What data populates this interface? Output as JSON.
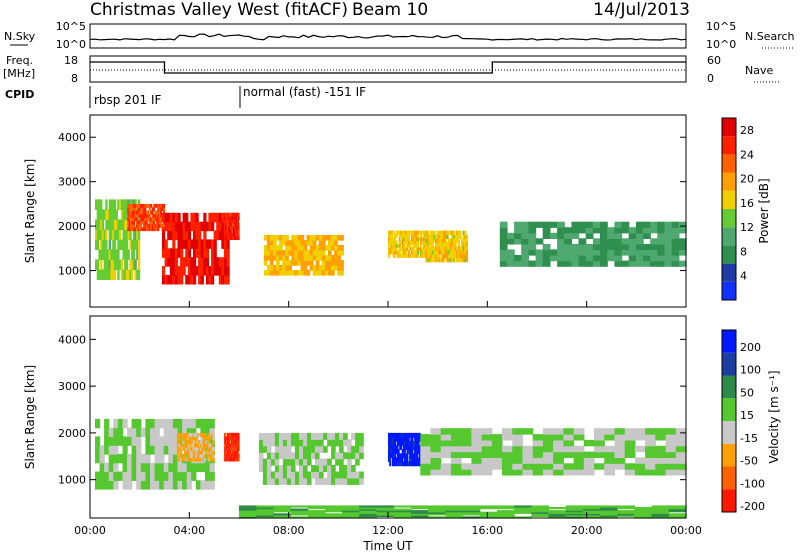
{
  "header": {
    "station": "Christmas Valley West (fitACF)",
    "beam": "Beam 10",
    "date": "14/Jul/2013"
  },
  "panels": {
    "nsky_label": "N.Sky",
    "nsky_left_top": "10^5",
    "nsky_left_bottom": "10^0",
    "nsearch_label": "N.Search",
    "nsearch_right_top": "10^5",
    "nsearch_right_bottom": "10^0",
    "freq_label": "Freq.",
    "freq_unit": "[MHz]",
    "freq_top": "18",
    "freq_bottom": "8",
    "nave_label": "Nave",
    "nave_top": "60",
    "nave_bottom": "0",
    "cpid_label": "CPID",
    "cpid_1": "rbsp 201 IF",
    "cpid_2": "normal (fast) -151 IF"
  },
  "axes": {
    "ylabel": "Slant Range [km]",
    "xlabel": "Time UT",
    "xticks": [
      "00:00",
      "04:00",
      "08:00",
      "12:00",
      "16:00",
      "20:00",
      "00:00"
    ],
    "yticks": [
      "1000",
      "2000",
      "3000",
      "4000"
    ]
  },
  "colorbars": {
    "power_label": "Power [dB]",
    "power_ticks": [
      "4",
      "8",
      "12",
      "16",
      "20",
      "24",
      "28"
    ],
    "power_colors": [
      "#1030ff",
      "#203aa8",
      "#2f8f4f",
      "#4fa870",
      "#66cc33",
      "#f0d000",
      "#ffa000",
      "#ff6000",
      "#ff2000",
      "#e00000"
    ],
    "velocity_label": "Velocity [m s⁻¹]",
    "velocity_ticks": [
      "200",
      "100",
      "50",
      "15",
      "-15",
      "-50",
      "-100",
      "-200"
    ],
    "velocity_colors": [
      "#0018ff",
      "#1c3ea0",
      "#2e8a48",
      "#54c82e",
      "#c8c8c8",
      "#ffa000",
      "#ff6000",
      "#ff1800"
    ]
  },
  "chart_data": {
    "type": "heatmap",
    "title": "Christmas Valley West (fitACF) Beam 10 14/Jul/2013",
    "xlabel": "Time UT",
    "ylabel": "Slant Range [km]",
    "xlim": [
      0,
      24
    ],
    "ylim": [
      180,
      4500
    ],
    "panels": [
      {
        "name": "Power [dB]",
        "zlim": [
          0,
          30
        ],
        "regions": [
          {
            "t_start": 0.2,
            "t_end": 2.0,
            "r_low": 800,
            "r_high": 2600,
            "power": 14
          },
          {
            "t_start": 1.5,
            "t_end": 3.0,
            "r_low": 1900,
            "r_high": 2500,
            "power": 24
          },
          {
            "t_start": 2.9,
            "t_end": 5.6,
            "r_low": 700,
            "r_high": 2300,
            "power": 27
          },
          {
            "t_start": 5.4,
            "t_end": 6.0,
            "r_low": 1700,
            "r_high": 2300,
            "power": 26
          },
          {
            "t_start": 7.0,
            "t_end": 10.2,
            "r_low": 900,
            "r_high": 1800,
            "power": 18
          },
          {
            "t_start": 12.0,
            "t_end": 13.6,
            "r_low": 1300,
            "r_high": 1900,
            "power": 17
          },
          {
            "t_start": 13.5,
            "t_end": 15.2,
            "r_low": 1200,
            "r_high": 1900,
            "power": 17
          },
          {
            "t_start": 16.5,
            "t_end": 24.0,
            "r_low": 1100,
            "r_high": 2100,
            "power": 9
          }
        ]
      },
      {
        "name": "Velocity [m s⁻¹]",
        "zlim": [
          -250,
          250
        ],
        "regions": [
          {
            "t_start": 0.2,
            "t_end": 5.0,
            "r_low": 800,
            "r_high": 2300,
            "velocity": 0
          },
          {
            "t_start": 3.5,
            "t_end": 5.0,
            "r_low": 1400,
            "r_high": 2000,
            "velocity": -80
          },
          {
            "t_start": 5.4,
            "t_end": 6.0,
            "r_low": 1400,
            "r_high": 2000,
            "velocity": -200
          },
          {
            "t_start": 6.8,
            "t_end": 11.0,
            "r_low": 900,
            "r_high": 2000,
            "velocity": 0
          },
          {
            "t_start": 12.0,
            "t_end": 13.3,
            "r_low": 1300,
            "r_high": 2000,
            "velocity": 220
          },
          {
            "t_start": 13.3,
            "t_end": 24.0,
            "r_low": 1100,
            "r_high": 2100,
            "velocity": 0
          },
          {
            "t_start": 6.0,
            "t_end": 24.0,
            "r_low": 180,
            "r_high": 450,
            "velocity": 40
          }
        ]
      }
    ]
  }
}
